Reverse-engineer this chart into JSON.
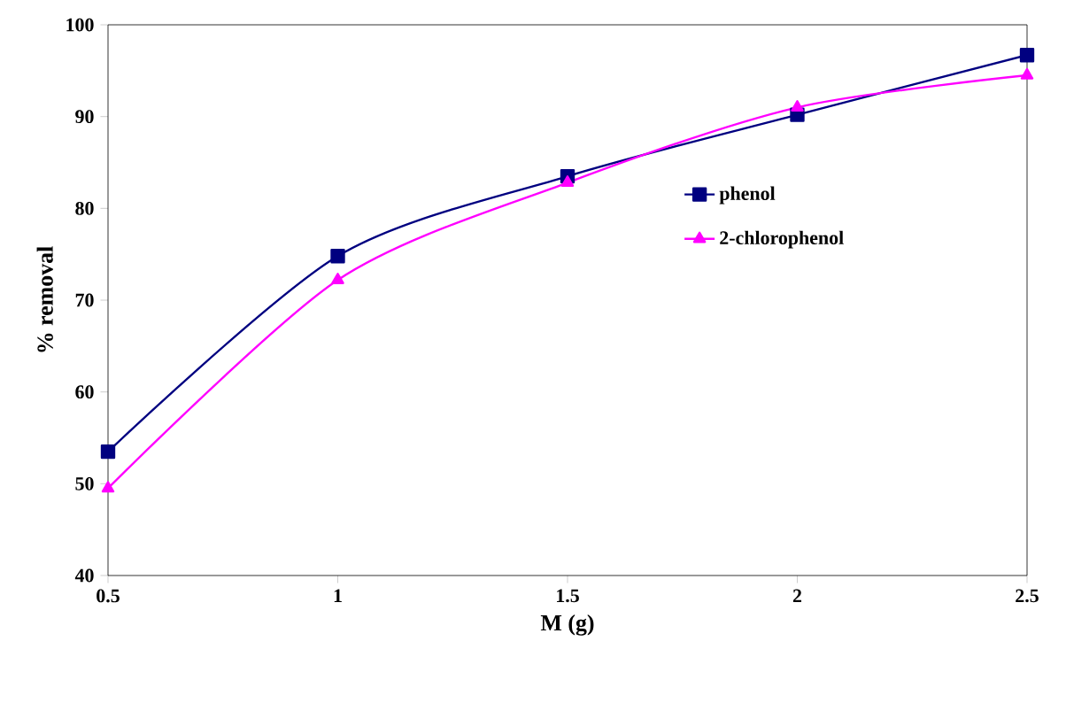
{
  "chart_data": {
    "type": "line",
    "xlabel": "M (g)",
    "ylabel": "% removal",
    "x": [
      0.5,
      1,
      1.5,
      2,
      2.5
    ],
    "series": [
      {
        "name": "phenol",
        "color": "#000080",
        "marker": "square",
        "values": [
          53.5,
          74.8,
          83.5,
          90.2,
          96.7
        ]
      },
      {
        "name": "2-chlorophenol",
        "color": "#ff00ff",
        "marker": "triangle",
        "values": [
          49.5,
          72.2,
          82.8,
          91.0,
          94.5
        ]
      }
    ],
    "xlim": [
      0.5,
      2.5
    ],
    "xticks": [
      0.5,
      1,
      1.5,
      2,
      2.5
    ],
    "ylim": [
      40,
      100
    ],
    "yticks": [
      40,
      50,
      60,
      70,
      80,
      90,
      100
    ],
    "legend": "right",
    "grid": false
  }
}
